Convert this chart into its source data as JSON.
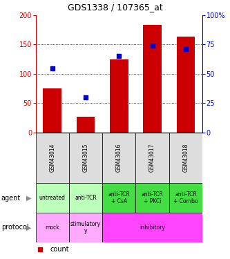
{
  "title": "GDS1338 / 107365_at",
  "samples": [
    "GSM43014",
    "GSM43015",
    "GSM43016",
    "GSM43017",
    "GSM43018"
  ],
  "counts": [
    75,
    27,
    125,
    183,
    163
  ],
  "percentile_ranks": [
    54.5,
    30,
    65,
    74,
    71
  ],
  "ylim_left": [
    0,
    200
  ],
  "ylim_right": [
    0,
    100
  ],
  "yticks_left": [
    0,
    50,
    100,
    150,
    200
  ],
  "yticks_right": [
    0,
    25,
    50,
    75,
    100
  ],
  "yticklabels_right": [
    "0",
    "25",
    "50",
    "75",
    "100%"
  ],
  "bar_color": "#cc0000",
  "dot_color": "#0000cc",
  "agent_bg": "#bbffbb",
  "agent_bg_dark": "#44dd44",
  "sample_bg": "#dddddd",
  "proto_bg_mock": "#ffaaff",
  "proto_bg_stimulatory": "#ffaaff",
  "proto_bg_inhibitory": "#ff44ff",
  "legend_count_color": "#cc0000",
  "legend_pct_color": "#0000cc",
  "left_axis_color": "#cc0000",
  "right_axis_color": "#0000cc",
  "agent_spans": [
    [
      0,
      0,
      "untreated"
    ],
    [
      1,
      1,
      "anti-TCR"
    ],
    [
      2,
      2,
      "anti-TCR\n+ CsA"
    ],
    [
      3,
      3,
      "anti-TCR\n+ PKCi"
    ],
    [
      4,
      4,
      "anti-TCR\n+ Combo"
    ]
  ],
  "agent_dark_spans": [
    2,
    3,
    4
  ],
  "proto_spans": [
    [
      0,
      0,
      "mock",
      "#ffaaff"
    ],
    [
      1,
      1,
      "stimulatory\ny",
      "#ffaaff"
    ],
    [
      2,
      4,
      "inhibitory",
      "#ff44ff"
    ]
  ]
}
